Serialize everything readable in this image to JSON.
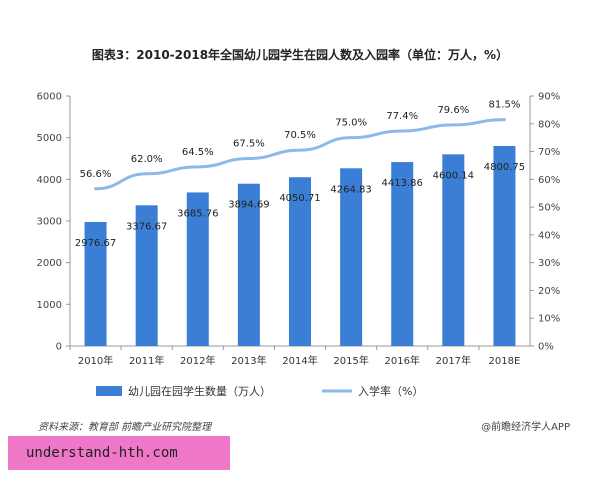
{
  "chart_data": {
    "type": "bar",
    "title": "图表3：2010-2018年全国幼儿园学生在园人数及入园率（单位：万人，%）",
    "categories": [
      "2010年",
      "2011年",
      "2012年",
      "2013年",
      "2014年",
      "2015年",
      "2016年",
      "2017年",
      "2018E"
    ],
    "series": [
      {
        "name": "幼儿园在园学生数量（万人）",
        "type": "bar",
        "axis": "left",
        "color": "#3a7fd5",
        "values": [
          2976.67,
          3376.67,
          3685.76,
          3894.69,
          4050.71,
          4264.83,
          4413.86,
          4600.14,
          4800.75
        ],
        "labels": [
          "2976.67",
          "3376.67",
          "3685.76",
          "3894.69",
          "4050.71",
          "4264.83",
          "4413.86",
          "4600.14",
          "4800.75"
        ]
      },
      {
        "name": "入学率（%）",
        "type": "line",
        "axis": "right",
        "color": "#8db9e8",
        "values": [
          56.6,
          62.0,
          64.5,
          67.5,
          70.5,
          75.0,
          77.4,
          79.6,
          81.5
        ],
        "labels": [
          "56.6%",
          "62.0%",
          "64.5%",
          "67.5%",
          "70.5%",
          "75.0%",
          "77.4%",
          "79.6%",
          "81.5%"
        ]
      }
    ],
    "y_left": {
      "min": 0,
      "max": 6000,
      "ticks": [
        "0",
        "1000",
        "2000",
        "3000",
        "4000",
        "5000",
        "6000"
      ]
    },
    "y_right": {
      "min": 0,
      "max": 90,
      "ticks": [
        "0%",
        "10%",
        "20%",
        "30%",
        "40%",
        "50%",
        "60%",
        "70%",
        "80%",
        "90%"
      ]
    },
    "grid": false,
    "legend_position": "bottom"
  },
  "footer": {
    "source": "资料来源：教育部 前瞻产业研究院整理",
    "brand": "@前瞻经济学人APP",
    "banner": "understand-hth.com"
  }
}
